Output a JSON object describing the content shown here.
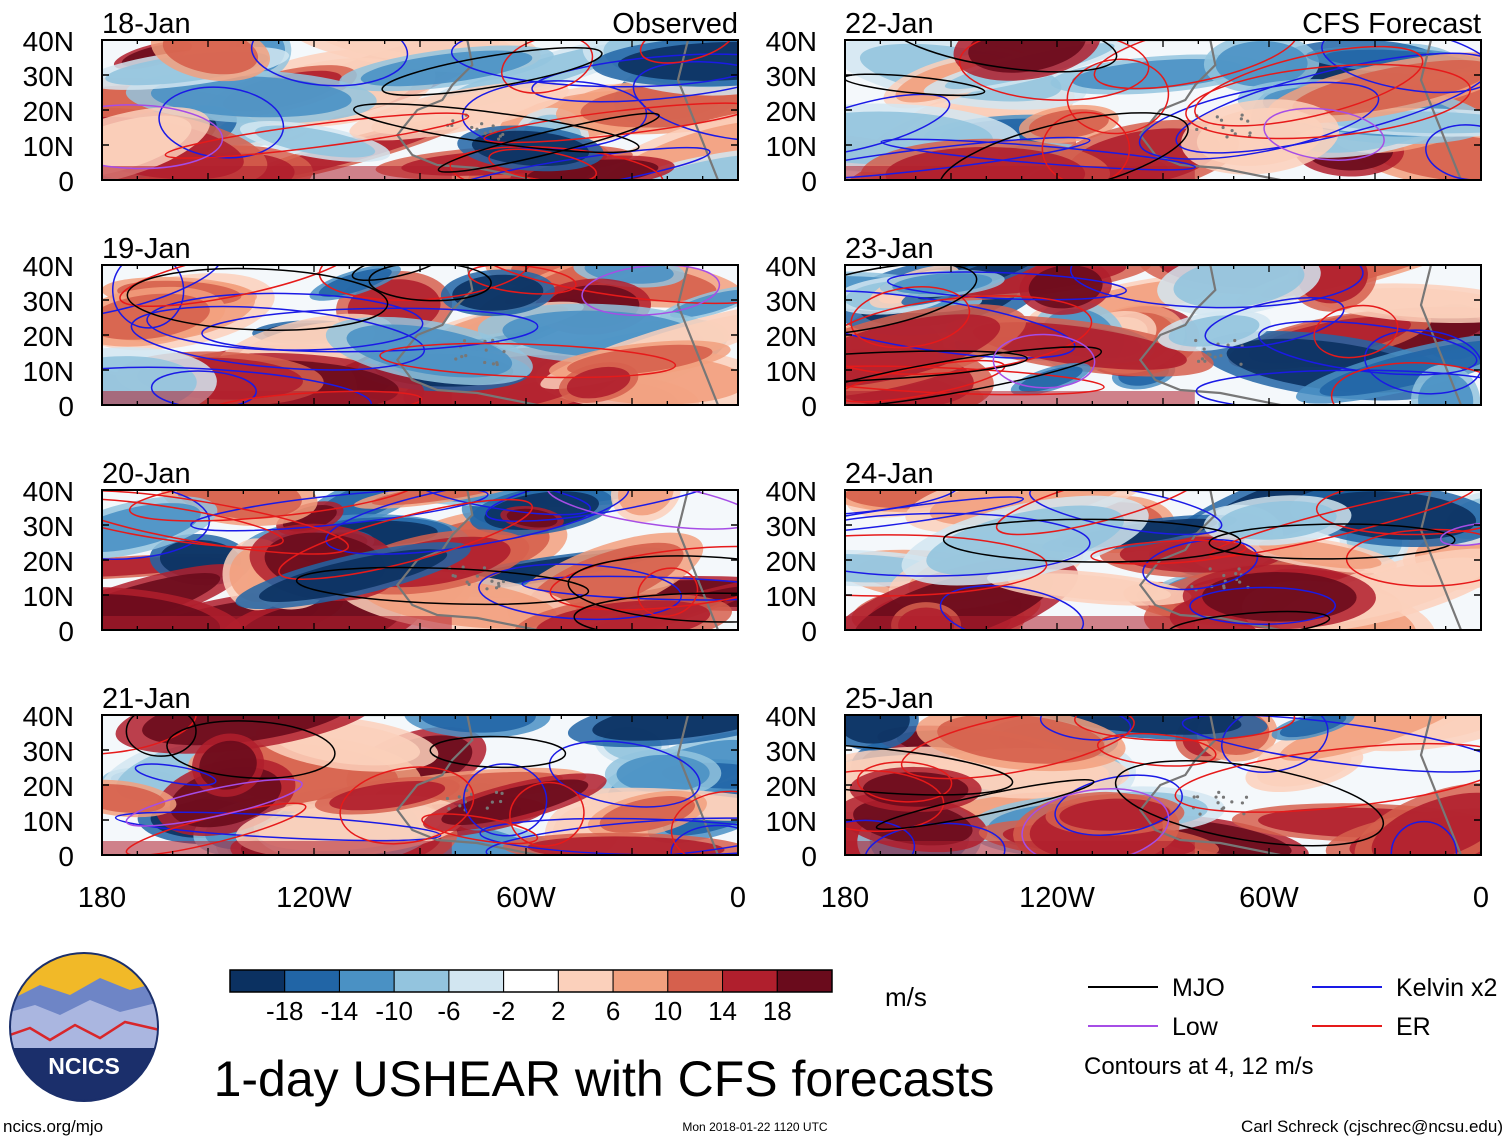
{
  "chart_data": {
    "type": "heatmap",
    "title": "1-day USHEAR with CFS forecasts",
    "variable": "USHEAR",
    "units": "m/s",
    "columns": [
      {
        "label": "Observed"
      },
      {
        "label": "CFS Forecast"
      }
    ],
    "panels": [
      {
        "date": "18-Jan",
        "kind": "Observed"
      },
      {
        "date": "19-Jan",
        "kind": "Observed"
      },
      {
        "date": "20-Jan",
        "kind": "Observed"
      },
      {
        "date": "21-Jan",
        "kind": "Observed"
      },
      {
        "date": "22-Jan",
        "kind": "CFS Forecast"
      },
      {
        "date": "23-Jan",
        "kind": "CFS Forecast"
      },
      {
        "date": "24-Jan",
        "kind": "CFS Forecast"
      },
      {
        "date": "25-Jan",
        "kind": "CFS Forecast"
      }
    ],
    "x_axis": {
      "range": [
        -180,
        0
      ],
      "ticks": [
        {
          "value": -180,
          "label": "180"
        },
        {
          "value": -120,
          "label": "120W"
        },
        {
          "value": -60,
          "label": "60W"
        },
        {
          "value": 0,
          "label": "0"
        }
      ]
    },
    "y_axis": {
      "range": [
        0,
        40
      ],
      "ticks": [
        {
          "value": 40,
          "label": "40N"
        },
        {
          "value": 30,
          "label": "30N"
        },
        {
          "value": 20,
          "label": "20N"
        },
        {
          "value": 10,
          "label": "10N"
        },
        {
          "value": 0,
          "label": "0"
        }
      ]
    },
    "colorbar": {
      "levels": [
        "-18",
        "-14",
        "-10",
        "-6",
        "-2",
        "2",
        "6",
        "10",
        "14",
        "18"
      ],
      "colors": [
        "#0b3161",
        "#2165a6",
        "#4a91c4",
        "#93c4de",
        "#d2e6f1",
        "#ffffff",
        "#fbd0bb",
        "#f2a07e",
        "#d6604d",
        "#b01f2d",
        "#6a0b1c"
      ]
    },
    "legend": {
      "items": [
        {
          "label": "MJO",
          "color": "#000000"
        },
        {
          "label": "Kelvin x2",
          "color": "#1a1ae6"
        },
        {
          "label": "Low",
          "color": "#a64de6"
        },
        {
          "label": "ER",
          "color": "#e61a1a"
        }
      ],
      "note": "Contours at 4, 12 m/s"
    }
  },
  "logo": {
    "text": "NCICS"
  },
  "footer": {
    "left": "ncics.org/mjo",
    "center": "Mon 2018-01-22 1120 UTC",
    "right": "Carl Schreck (cjschrec@ncsu.edu)"
  }
}
